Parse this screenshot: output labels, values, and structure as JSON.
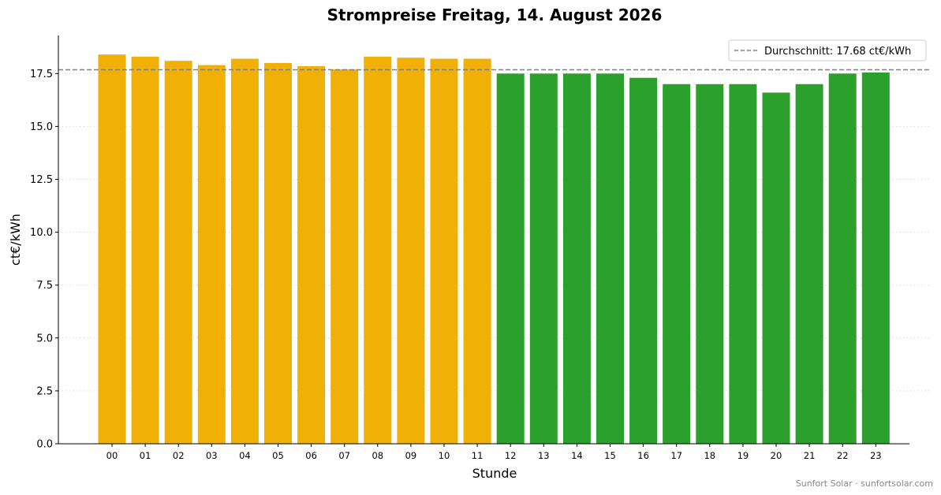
{
  "chart_data": {
    "type": "bar",
    "title": "Strompreise Freitag, 14. August 2026",
    "xlabel": "Stunde",
    "ylabel": "ct€/kWh",
    "ylim": [
      0,
      19.3
    ],
    "yticks": [
      "0.0",
      "2.5",
      "5.0",
      "7.5",
      "10.0",
      "12.5",
      "15.0",
      "17.5"
    ],
    "categories": [
      "00",
      "01",
      "02",
      "03",
      "04",
      "05",
      "06",
      "07",
      "08",
      "09",
      "10",
      "11",
      "12",
      "13",
      "14",
      "15",
      "16",
      "17",
      "18",
      "19",
      "20",
      "21",
      "22",
      "23"
    ],
    "values": [
      18.4,
      18.3,
      18.1,
      17.9,
      18.2,
      18.0,
      17.85,
      17.7,
      18.3,
      18.25,
      18.2,
      18.2,
      17.5,
      17.5,
      17.5,
      17.5,
      17.3,
      17.0,
      17.0,
      17.0,
      16.6,
      17.0,
      17.5,
      17.55
    ],
    "bar_colors": [
      "#f0b005",
      "#f0b005",
      "#f0b005",
      "#f0b005",
      "#f0b005",
      "#f0b005",
      "#f0b005",
      "#f0b005",
      "#f0b005",
      "#f0b005",
      "#f0b005",
      "#f0b005",
      "#2ca02c",
      "#2ca02c",
      "#2ca02c",
      "#2ca02c",
      "#2ca02c",
      "#2ca02c",
      "#2ca02c",
      "#2ca02c",
      "#2ca02c",
      "#2ca02c",
      "#2ca02c",
      "#2ca02c"
    ],
    "average": 17.68,
    "legend": {
      "label": "Durchschnitt: 17.68 ct€/kWh",
      "position": "top-right"
    },
    "grid": "horizontal-dotted"
  },
  "footer": "Sunfort Solar · sunfortsolar.com",
  "colors": {
    "high": "#f0b005",
    "low": "#2ca02c",
    "average_line": "#808080"
  }
}
